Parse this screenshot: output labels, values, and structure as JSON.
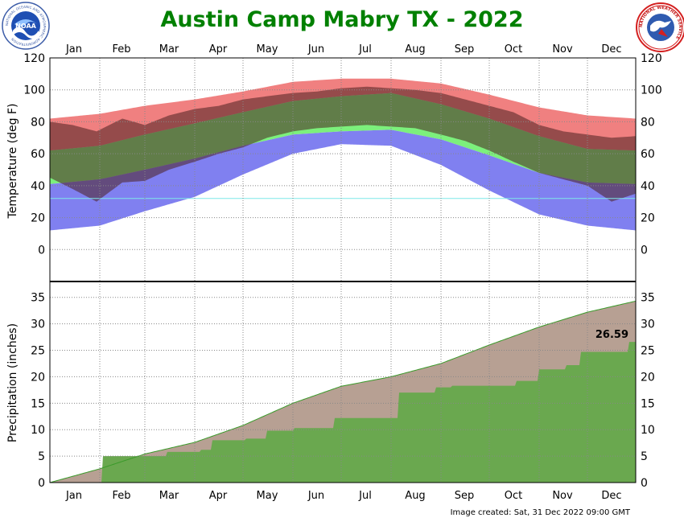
{
  "title": "Austin Camp Mabry TX - 2022",
  "footer": "Image created: Sat, 31 Dec 2022 09:00 GMT",
  "logos": {
    "left": {
      "name": "NOAA",
      "ring_text": "NATIONAL OCEANIC AND ATMOSPHERIC ADMINISTRATION"
    },
    "right": {
      "name": "National Weather Service",
      "ring_text": "NATIONAL WEATHER SERVICE"
    }
  },
  "colors": {
    "title": "#008000",
    "record_range": "#f08080",
    "normal_range": "#7cf07c",
    "record_low_range": "#8080f0",
    "actual_temp": "#4a1f1f",
    "normal_precip": "#b7a093",
    "actual_precip": "#6aa84f",
    "freezing_line": "#7fe8e8"
  },
  "chart_data": [
    {
      "type": "bar",
      "title": "Austin Camp Mabry TX - 2022",
      "ylabel": "Temperature (deg F)",
      "ylim": [
        -20,
        120
      ],
      "yticks": [
        0,
        20,
        40,
        60,
        80,
        100,
        120
      ],
      "months": [
        "Jan",
        "Feb",
        "Mar",
        "Apr",
        "May",
        "Jun",
        "Jul",
        "Aug",
        "Sep",
        "Oct",
        "Nov",
        "Dec"
      ],
      "grid": true,
      "freezing_line": 32,
      "series": [
        {
          "x": [
            1,
            32,
            60,
            91,
            121,
            152,
            182,
            213,
            244,
            274,
            305,
            335,
            365
          ],
          "values": [
            82,
            85,
            90,
            94,
            99,
            105,
            107,
            107,
            104,
            97,
            89,
            84,
            82
          ]
        },
        {
          "x": [
            1,
            32,
            60,
            91,
            121,
            152,
            182,
            213,
            244,
            274,
            305,
            335,
            365
          ],
          "values": [
            62,
            65,
            72,
            79,
            86,
            93,
            96,
            98,
            91,
            82,
            71,
            63,
            62
          ]
        },
        {
          "x": [
            1,
            32,
            60,
            91,
            121,
            152,
            182,
            213,
            244,
            274,
            305,
            335,
            365
          ],
          "values": [
            41,
            44,
            50,
            57,
            65,
            72,
            74,
            75,
            69,
            59,
            48,
            42,
            41
          ]
        },
        {
          "x": [
            1,
            32,
            60,
            91,
            121,
            152,
            182,
            213,
            244,
            274,
            305,
            335,
            365
          ],
          "values": [
            12,
            15,
            24,
            33,
            47,
            60,
            66,
            65,
            53,
            37,
            22,
            15,
            12
          ]
        },
        {
          "x": [
            1,
            15,
            30,
            46,
            60,
            75,
            91,
            106,
            121,
            136,
            152,
            167,
            182,
            198,
            213,
            228,
            244,
            259,
            274,
            289,
            305,
            320,
            335,
            350,
            365
          ],
          "values": [
            80,
            78,
            74,
            82,
            78,
            84,
            88,
            90,
            94,
            96,
            98,
            99,
            101,
            102,
            101,
            100,
            98,
            94,
            90,
            86,
            78,
            74,
            72,
            70,
            71
          ]
        },
        {
          "x": [
            1,
            15,
            30,
            46,
            60,
            75,
            91,
            106,
            121,
            136,
            152,
            167,
            182,
            198,
            213,
            228,
            244,
            259,
            274,
            289,
            305,
            320,
            335,
            350,
            365
          ],
          "values": [
            45,
            38,
            30,
            42,
            43,
            50,
            55,
            60,
            64,
            70,
            74,
            76,
            77,
            78,
            77,
            76,
            72,
            68,
            62,
            55,
            48,
            44,
            40,
            30,
            35
          ]
        }
      ]
    },
    {
      "type": "area",
      "ylabel": "Precipitation (inches)",
      "ylim": [
        0,
        38
      ],
      "yticks": [
        0,
        5,
        10,
        15,
        20,
        25,
        30,
        35
      ],
      "annotation": "26.59",
      "series": [
        {
          "x": [
            1,
            32,
            60,
            91,
            121,
            152,
            182,
            213,
            244,
            274,
            305,
            335,
            365
          ],
          "values": [
            0,
            2.6,
            5.4,
            7.6,
            10.8,
            15.0,
            18.2,
            20.0,
            22.5,
            26.0,
            29.4,
            32.2,
            34.3
          ]
        },
        {
          "x": [
            1,
            33,
            34,
            73,
            74,
            94,
            95,
            101,
            102,
            122,
            123,
            135,
            136,
            152,
            153,
            177,
            178,
            217,
            218,
            240,
            241,
            250,
            251,
            290,
            291,
            304,
            305,
            321,
            322,
            330,
            331,
            360,
            361,
            365
          ],
          "values": [
            0,
            0,
            5.0,
            5.0,
            5.8,
            5.8,
            6.2,
            6.2,
            8.0,
            8.0,
            8.3,
            8.3,
            9.8,
            9.8,
            10.3,
            10.3,
            12.2,
            12.2,
            17.0,
            17.0,
            18.0,
            18.0,
            18.3,
            18.3,
            19.2,
            19.2,
            21.4,
            21.4,
            22.2,
            22.2,
            24.7,
            24.7,
            26.59,
            26.59
          ],
          "step": true
        }
      ]
    }
  ]
}
